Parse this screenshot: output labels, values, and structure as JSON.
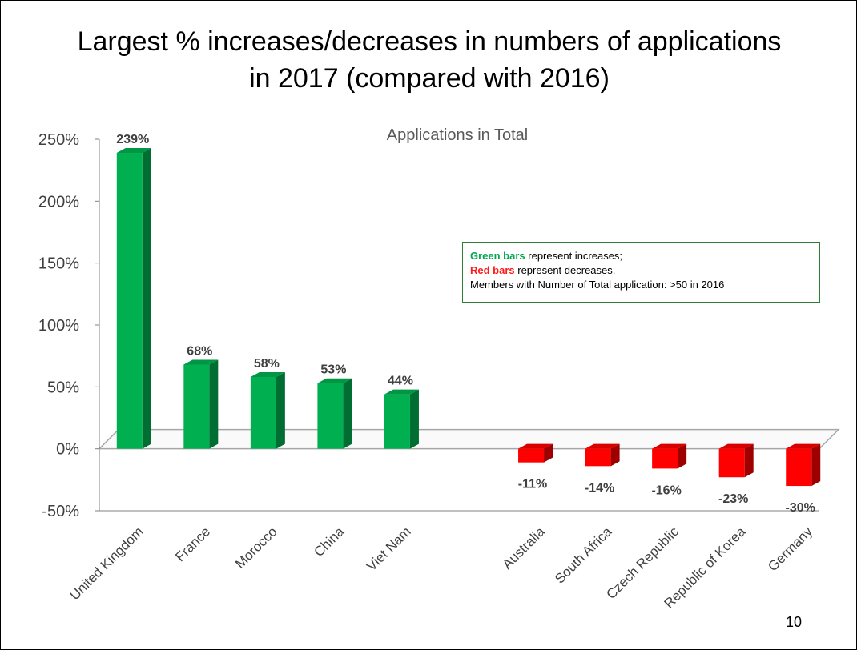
{
  "slide": {
    "title_line1": "Largest % increases/decreases in numbers of applications",
    "title_line2": "in 2017 (compared with 2016)",
    "page_number": "10"
  },
  "legend": {
    "green_label": "Green bars",
    "green_text": " represent increases;",
    "red_label": "Red bars",
    "red_text": " represent decreases.",
    "note": "Members with Number of Total application: >50 in 2016"
  },
  "colors": {
    "increase": "#00b050",
    "decrease": "#ff0000"
  },
  "chart_data": {
    "type": "bar",
    "title": "Applications in Total",
    "xlabel": "",
    "ylabel": "",
    "ylim": [
      -0.5,
      2.5
    ],
    "yticks": [
      2.5,
      2.0,
      1.5,
      1.0,
      0.5,
      0.0,
      -0.5
    ],
    "ytick_labels": [
      "250%",
      "200%",
      "150%",
      "100%",
      "50%",
      "0%",
      "-50%"
    ],
    "categories": [
      "United Kingdom",
      "France",
      "Morocco",
      "China",
      "Viet Nam",
      "",
      "Australia",
      "South Africa",
      "Czech Republic",
      "Republic of Korea",
      "Germany"
    ],
    "values": [
      2.39,
      0.68,
      0.58,
      0.53,
      0.44,
      null,
      -0.11,
      -0.14,
      -0.16,
      -0.23,
      -0.3
    ],
    "data_labels": [
      "239%",
      "68%",
      "58%",
      "53%",
      "44%",
      "",
      "-11%",
      "-14%",
      "-16%",
      "-23%",
      "-30%"
    ],
    "style": "3d-column",
    "grid": false,
    "legend": "none"
  }
}
